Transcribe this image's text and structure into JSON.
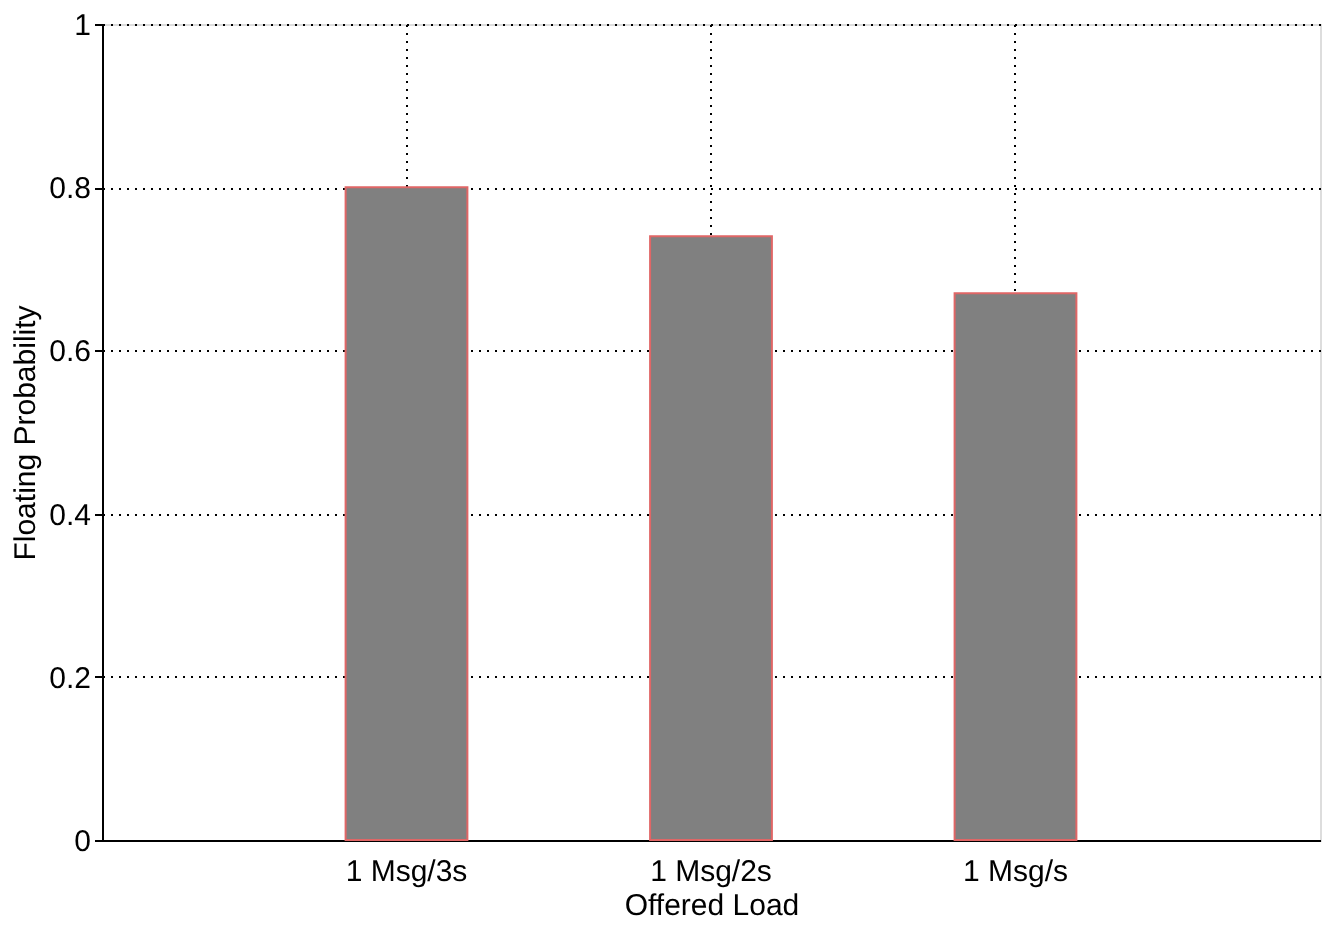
{
  "chart_data": {
    "type": "bar",
    "categories": [
      "1 Msg/3s",
      "1 Msg/2s",
      "1 Msg/s"
    ],
    "values": [
      0.8,
      0.74,
      0.67
    ],
    "color": "#808080",
    "xlabel": "Offered Load",
    "ylabel": "Floating Probability",
    "ylim": [
      0,
      1
    ],
    "yticks": [
      0,
      0.2,
      0.4,
      0.6,
      0.8,
      1
    ],
    "grid": true
  }
}
